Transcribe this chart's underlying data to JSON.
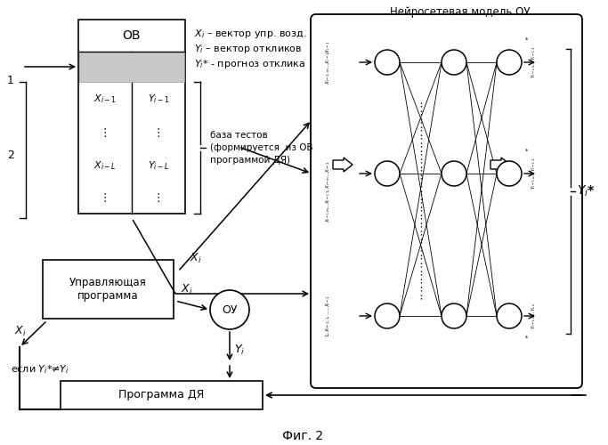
{
  "title": "Нейросетевая модель ОУ",
  "fig_label": "Фиг. 2",
  "bg_color": "#ffffff",
  "legend_Xi": "$\\boldsymbol{X_i}$ – вектор упр. возд.",
  "legend_Yi": "$\\boldsymbol{Y_i}$ – вектор откликов",
  "legend_Yi_star": "$\\boldsymbol{Y_i}$* - прогноз отклика",
  "base_tests_label": "база тестов\n(формируется  из ОВ\nпрограммой ДЯ)",
  "OB_label": "ОВ",
  "control_program_label": "Управляющая\nпрограмма",
  "OU_label": "ОУ",
  "DYA_label": "Программа ДЯ",
  "cond_label": "если $Y_i$*≠$Y_i$",
  "label1": "1",
  "label2": "2"
}
